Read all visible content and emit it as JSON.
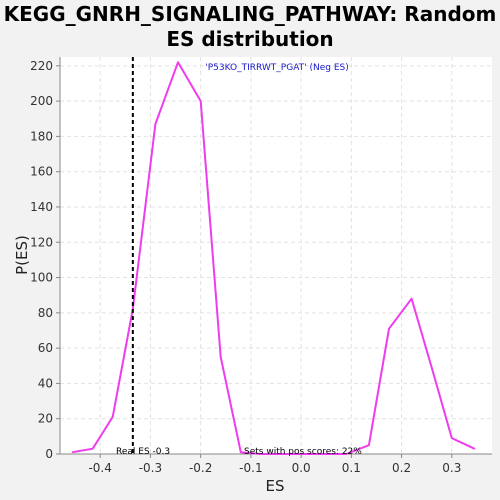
{
  "chart_data": {
    "type": "line",
    "title_line1": "KEGG_GNRH_SIGNALING_PATHWAY: Random",
    "title_line2": "ES distribution",
    "xlabel": "ES",
    "ylabel": "P(ES)",
    "xlim": [
      -0.48,
      0.38
    ],
    "ylim": [
      0,
      225
    ],
    "x_ticks": [
      -0.4,
      -0.3,
      -0.2,
      -0.1,
      0.0,
      0.1,
      0.2,
      0.3
    ],
    "x_tick_labels": [
      "-0.4",
      "-0.3",
      "-0.2",
      "-0.1",
      "0.0",
      "0.1",
      "0.2",
      "0.3"
    ],
    "y_ticks": [
      0,
      20,
      40,
      60,
      80,
      100,
      120,
      140,
      160,
      180,
      200,
      220
    ],
    "grid": true,
    "series": [
      {
        "color": "#ee3cee",
        "x": [
          -0.455,
          -0.415,
          -0.375,
          -0.335,
          -0.29,
          -0.245,
          -0.2,
          -0.16,
          -0.12,
          -0.08,
          -0.04,
          0.0,
          0.05,
          0.09,
          0.135,
          0.175,
          0.22,
          0.26,
          0.3,
          0.345
        ],
        "values": [
          1,
          3,
          21,
          82,
          187,
          222,
          200,
          55,
          1,
          0,
          0,
          0,
          0,
          0,
          5,
          71,
          88,
          49,
          9,
          3
        ]
      }
    ],
    "real_es": -0.335,
    "annotations": {
      "top": "'P53KO_TIRRWT_PGAT' (Neg ES)",
      "real_es": "Real ES -0.3",
      "pos_scores": "Sets with pos scores: 22%"
    }
  },
  "colors": {
    "line": "#ee3cee",
    "top_annotation": "#1a1acc",
    "background": "#f2f2f2",
    "plot_bg": "#ffffff"
  }
}
